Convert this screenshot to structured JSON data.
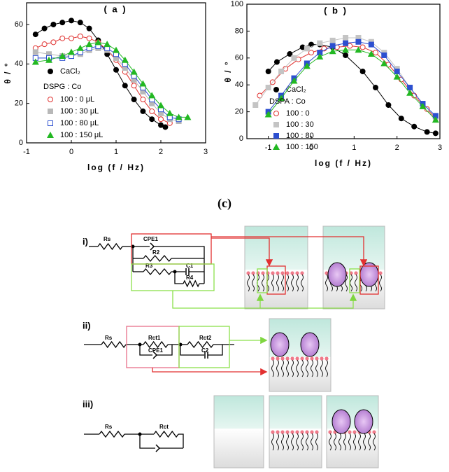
{
  "chart_data": [
    {
      "type": "scatter",
      "title": "( a )",
      "x_label": "log (f / Hz)",
      "y_label": "θ / °",
      "xlim": [
        -1,
        3
      ],
      "xticks": [
        -1,
        0,
        1,
        2,
        3
      ],
      "ylim": [
        0,
        71
      ],
      "yticks": [
        0,
        20,
        40,
        60
      ],
      "legend_subtitle": "DSPG : Co",
      "series": [
        {
          "name": "CaCl₂",
          "color": "#000000",
          "marker": "filled-circle",
          "x": [
            -0.8,
            -0.6,
            -0.4,
            -0.2,
            0,
            0.2,
            0.4,
            0.6,
            0.8,
            1.0,
            1.2,
            1.4,
            1.6,
            1.8,
            2.0,
            2.1
          ],
          "values": [
            55,
            58,
            60,
            61,
            62,
            61,
            58,
            52,
            45,
            37,
            29,
            22,
            16,
            12,
            9,
            8
          ]
        },
        {
          "name": "100 : 0 μL",
          "color": "#e0312f",
          "marker": "open-circle",
          "x": [
            -0.8,
            -0.6,
            -0.4,
            -0.2,
            0,
            0.2,
            0.4,
            0.6,
            0.8,
            1.0,
            1.2,
            1.4,
            1.6,
            1.8,
            2.0,
            2.2
          ],
          "values": [
            48,
            50,
            51,
            53,
            53,
            54,
            53,
            51,
            47,
            42,
            36,
            29,
            22,
            16,
            12,
            10
          ]
        },
        {
          "name": "100 : 30 μL",
          "color": "#b8b8b8",
          "marker": "square",
          "x": [
            -0.8,
            -0.5,
            -0.2,
            0,
            0.2,
            0.4,
            0.6,
            0.8,
            1.0,
            1.2,
            1.4,
            1.6,
            1.8,
            2.0,
            2.2,
            2.4
          ],
          "values": [
            46,
            45,
            44,
            44,
            45,
            47,
            48,
            47,
            43,
            38,
            32,
            26,
            20,
            15,
            12,
            11
          ]
        },
        {
          "name": "100 : 80 μL",
          "color": "#2c4fd0",
          "marker": "open-square",
          "x": [
            -0.8,
            -0.5,
            -0.2,
            0,
            0.2,
            0.4,
            0.6,
            0.8,
            1.0,
            1.2,
            1.4,
            1.6,
            1.8,
            2.0,
            2.2,
            2.4
          ],
          "values": [
            43,
            43,
            43,
            44,
            46,
            48,
            49,
            48,
            45,
            40,
            34,
            28,
            22,
            17,
            13,
            12
          ]
        },
        {
          "name": "100 : 150 μL",
          "color": "#22b822",
          "marker": "triangle",
          "x": [
            -0.8,
            -0.5,
            -0.2,
            0,
            0.2,
            0.4,
            0.6,
            0.8,
            1.0,
            1.2,
            1.4,
            1.6,
            1.8,
            2.0,
            2.2,
            2.4,
            2.6
          ],
          "values": [
            41,
            42,
            44,
            46,
            48,
            50,
            51,
            50,
            47,
            42,
            36,
            30,
            24,
            19,
            15,
            13,
            13
          ]
        }
      ]
    },
    {
      "type": "scatter",
      "title": "( b )",
      "x_label": "log (f / Hz)",
      "y_label": "θ / °",
      "xlim": [
        -1.5,
        3
      ],
      "xticks": [
        -1,
        0,
        1,
        2,
        3
      ],
      "ylim": [
        0,
        100
      ],
      "yticks": [
        0,
        20,
        40,
        60,
        80,
        100
      ],
      "legend_subtitle": "DSPA : Co",
      "series": [
        {
          "name": "CaCl₂",
          "color": "#000000",
          "marker": "filled-circle",
          "x": [
            -1,
            -0.8,
            -0.5,
            -0.2,
            0,
            0.2,
            0.5,
            0.8,
            1.2,
            1.5,
            1.8,
            2.1,
            2.4,
            2.7,
            2.9
          ],
          "values": [
            50,
            57,
            63,
            68,
            70,
            70,
            68,
            62,
            50,
            38,
            25,
            15,
            9,
            5,
            4
          ]
        },
        {
          "name": "100 : 0",
          "color": "#e0312f",
          "marker": "open-circle",
          "x": [
            -1.2,
            -0.9,
            -0.6,
            -0.3,
            0,
            0.3,
            0.6,
            0.9,
            1.2,
            1.5,
            1.8,
            2.1,
            2.4,
            2.7,
            2.9
          ],
          "values": [
            32,
            42,
            52,
            59,
            64,
            67,
            68,
            69,
            68,
            64,
            55,
            44,
            32,
            22,
            15
          ]
        },
        {
          "name": "100 : 30",
          "color": "#c4c4c4",
          "marker": "square",
          "x": [
            -1.3,
            -1,
            -0.7,
            -0.4,
            -0.1,
            0.2,
            0.5,
            0.8,
            1.1,
            1.4,
            1.7,
            2.0,
            2.3,
            2.6,
            2.9
          ],
          "values": [
            25,
            38,
            50,
            60,
            67,
            71,
            73,
            75,
            75,
            72,
            64,
            52,
            38,
            26,
            16
          ]
        },
        {
          "name": "100 : 80",
          "color": "#2c4fd0",
          "marker": "square",
          "x": [
            -1,
            -0.7,
            -0.4,
            -0.1,
            0.2,
            0.5,
            0.8,
            1.1,
            1.4,
            1.7,
            2.0,
            2.3,
            2.6,
            2.9
          ],
          "values": [
            20,
            32,
            45,
            56,
            64,
            69,
            71,
            72,
            70,
            62,
            50,
            38,
            26,
            17
          ]
        },
        {
          "name": "100 : 150",
          "color": "#22b822",
          "marker": "triangle",
          "x": [
            -1,
            -0.7,
            -0.4,
            -0.1,
            0.2,
            0.5,
            0.8,
            1.1,
            1.4,
            1.7,
            2.0,
            2.3,
            2.6,
            2.9
          ],
          "values": [
            18,
            30,
            43,
            54,
            61,
            65,
            66,
            66,
            63,
            56,
            46,
            34,
            24,
            14
          ]
        }
      ]
    }
  ],
  "diagram": {
    "label": "(c)",
    "rows": [
      {
        "label": "i)",
        "components": [
          "Rs",
          "CPE1",
          "R2",
          "R3",
          "C1",
          "R4"
        ]
      },
      {
        "label": "ii)",
        "components": [
          "Rs",
          "Rct1",
          "CPE1",
          "Rct2",
          "C2"
        ]
      },
      {
        "label": "iii)",
        "components": [
          "Rs",
          "Rct"
        ]
      }
    ]
  }
}
